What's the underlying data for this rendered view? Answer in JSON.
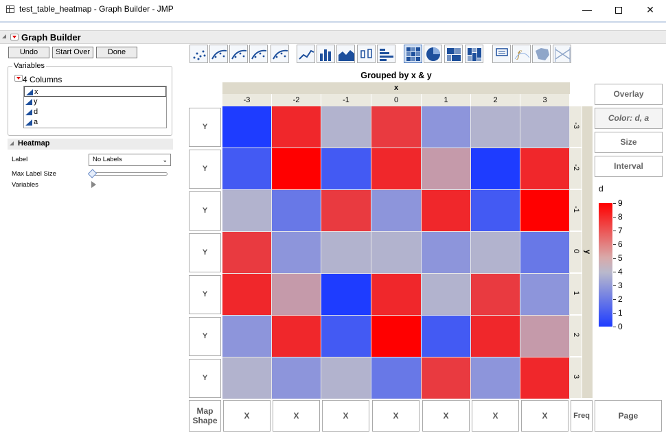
{
  "window": {
    "title": "test_table_heatmap - Graph Builder - JMP",
    "min_glyph": "—",
    "close_glyph": "✕"
  },
  "graph_builder": {
    "title": "Graph Builder",
    "buttons": {
      "undo": "Undo",
      "start_over": "Start Over",
      "done": "Done"
    }
  },
  "variables": {
    "group_label": "Variables",
    "columns_label": "4 Columns",
    "columns": [
      "x",
      "y",
      "d",
      "a"
    ],
    "selected": "x"
  },
  "heatmap_panel": {
    "title": "Heatmap",
    "label_field": "Label",
    "label_value": "No Labels",
    "max_label_size_field": "Max Label Size",
    "variables_field": "Variables"
  },
  "toolbar": {
    "icons": [
      "points-icon",
      "smoother-icon",
      "line-of-fit-icon",
      "ellipse-icon",
      "contour-icon",
      "line-icon",
      "bar-icon",
      "area-icon",
      "box-plot-icon",
      "histogram-icon",
      "heatmap-icon",
      "pie-icon",
      "treemap-icon",
      "mosaic-icon",
      "caption-box-icon",
      "formula-icon",
      "map-shapes-icon",
      "parallel-icon"
    ],
    "active": "heatmap-icon"
  },
  "graph": {
    "title": "Grouped by x & y",
    "x_label": "x",
    "y_label": "y",
    "x_ticks": [
      "-3",
      "-2",
      "-1",
      "0",
      "1",
      "2",
      "3"
    ],
    "y_ticks": [
      "-3",
      "-2",
      "-1",
      "0",
      "1",
      "2",
      "3"
    ],
    "y_zone_label": "Y",
    "x_zone_label": "X",
    "map_shape_label": [
      "Map",
      "Shape"
    ],
    "freq_label": "Freq",
    "page_label": "Page",
    "right_zones": {
      "overlay": "Overlay",
      "color": "Color: d, a",
      "size": "Size",
      "interval": "Interval"
    }
  },
  "chart_data": {
    "type": "heatmap",
    "title": "Grouped by x & y",
    "xlabel": "x",
    "ylabel": "y",
    "x": [
      -3,
      -2,
      -1,
      0,
      1,
      2,
      3
    ],
    "y": [
      -3,
      -2,
      -1,
      0,
      1,
      2,
      3
    ],
    "color_variable": "d",
    "color_range": [
      0,
      9
    ],
    "values": [
      [
        0,
        8,
        4,
        7.5,
        3,
        4,
        4
      ],
      [
        1,
        9,
        1,
        8,
        5,
        0,
        8
      ],
      [
        4,
        2,
        7.5,
        3,
        8,
        1,
        9
      ],
      [
        7.5,
        3,
        4,
        4,
        3,
        4,
        2
      ],
      [
        8,
        5,
        0,
        8,
        4,
        7.5,
        3
      ],
      [
        3,
        8,
        1,
        9,
        1,
        8,
        5
      ],
      [
        4,
        3,
        4,
        2,
        7.5,
        3,
        8
      ]
    ],
    "legend": {
      "title": "d",
      "labels": [
        "9",
        "8",
        "7",
        "6",
        "5",
        "4",
        "3",
        "2",
        "1",
        "0"
      ],
      "colors": {
        "low": "#1e3cff",
        "mid": "#b9b9cc",
        "high": "#ff0000"
      }
    }
  }
}
